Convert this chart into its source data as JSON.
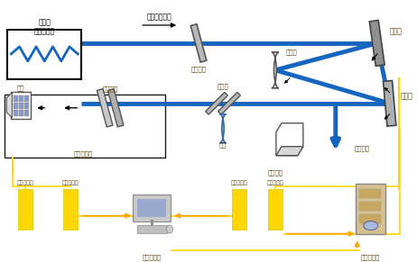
{
  "bg_color": "#ffffff",
  "blue": "#1565C0",
  "yellow": "#FFD700",
  "orange": "#FFA500",
  "gray_plate": "#A0A0A0",
  "gray_dark": "#707070",
  "text_col": "#5A3E00",
  "labels": {
    "laser": "大功率\n板条激光器",
    "beam_dir": "光束传播方向",
    "optical_sys1": "光学系统",
    "optical_sys2": "光学系统",
    "tilted_mirror": "倒斜镜",
    "beam_splitter": "分光镜",
    "reflector": "反射镜",
    "deformable": "变形镜",
    "lens": "透镜",
    "wavefront_sensor": "波前传感器",
    "output_laser": "出射激光",
    "camera": "相机",
    "far_field_cam": "远场相机",
    "img_capture1": "图像采集卡",
    "img_capture2": "图像采集卡",
    "img_conv1": "图像转换卡",
    "img_conv2": "图像转换卡",
    "wavefront_proc": "波前处理机",
    "high_voltage_amp": "高压放大器"
  }
}
